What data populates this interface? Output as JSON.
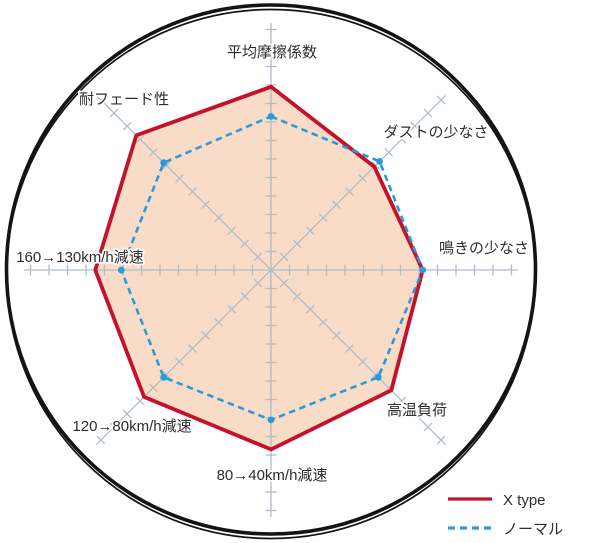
{
  "page": {
    "background_color": "#ffffff"
  },
  "chart_data": {
    "type": "radar",
    "title": "",
    "axes": [
      {
        "label": "平均摩擦係数"
      },
      {
        "label": "ダストの少なさ"
      },
      {
        "label": "鳴きの少なさ"
      },
      {
        "label": "高温負荷"
      },
      {
        "label": "80→40km/h減速"
      },
      {
        "label": "120→80km/h減速"
      },
      {
        "label": "160→130km/h減速"
      },
      {
        "label": "耐フェード性"
      }
    ],
    "axes_start": "top",
    "axes_direction": "clockwise",
    "scale": {
      "tick_count": 13,
      "tick_labels_visible": false,
      "value_min": 0,
      "value_max": 13.3
    },
    "series": [
      {
        "name": "X type",
        "color": "#c5122c",
        "line_style": "solid",
        "fill": "#f8dcc7",
        "values": [
          9.9,
          7.9,
          8.2,
          9.2,
          9.7,
          9.7,
          9.5,
          10.3
        ]
      },
      {
        "name": "ノーマル",
        "color": "#2b9bd8",
        "line_style": "dashed",
        "fill": null,
        "values": [
          8.3,
          8.3,
          8.2,
          8.2,
          8.1,
          8.2,
          8.1,
          8.2
        ]
      }
    ],
    "grid_color": "#b0bcc6",
    "ring_color": "#141414",
    "label_color": "#2e2e2e",
    "legend": {
      "position": "bottom-right"
    }
  }
}
